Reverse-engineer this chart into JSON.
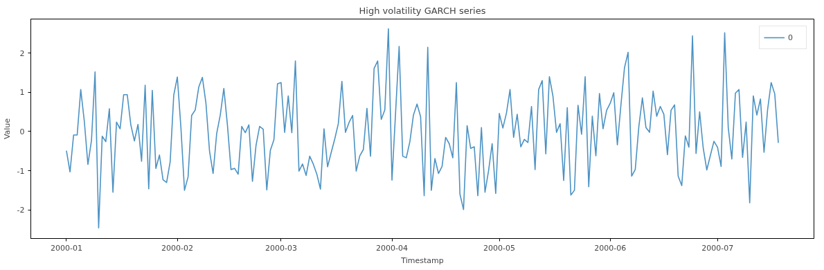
{
  "chart_data": {
    "type": "line",
    "title": "High volatility GARCH series",
    "xlabel": "Timestamp",
    "ylabel": "Value",
    "x": [
      "2000-01-01",
      "2000-01-02",
      "2000-01-03",
      "2000-01-04",
      "2000-01-05",
      "2000-01-06",
      "2000-01-07",
      "2000-01-08",
      "2000-01-09",
      "2000-01-10",
      "2000-01-11",
      "2000-01-12",
      "2000-01-13",
      "2000-01-14",
      "2000-01-15",
      "2000-01-16",
      "2000-01-17",
      "2000-01-18",
      "2000-01-19",
      "2000-01-20",
      "2000-01-21",
      "2000-01-22",
      "2000-01-23",
      "2000-01-24",
      "2000-01-25",
      "2000-01-26",
      "2000-01-27",
      "2000-01-28",
      "2000-01-29",
      "2000-01-30",
      "2000-01-31",
      "2000-02-01",
      "2000-02-02",
      "2000-02-03",
      "2000-02-04",
      "2000-02-05",
      "2000-02-06",
      "2000-02-07",
      "2000-02-08",
      "2000-02-09",
      "2000-02-10",
      "2000-02-11",
      "2000-02-12",
      "2000-02-13",
      "2000-02-14",
      "2000-02-15",
      "2000-02-16",
      "2000-02-17",
      "2000-02-18",
      "2000-02-19",
      "2000-02-20",
      "2000-02-21",
      "2000-02-22",
      "2000-02-23",
      "2000-02-24",
      "2000-02-25",
      "2000-02-26",
      "2000-02-27",
      "2000-02-28",
      "2000-02-29",
      "2000-03-01",
      "2000-03-02",
      "2000-03-03",
      "2000-03-04",
      "2000-03-05",
      "2000-03-06",
      "2000-03-07",
      "2000-03-08",
      "2000-03-09",
      "2000-03-10",
      "2000-03-11",
      "2000-03-12",
      "2000-03-13",
      "2000-03-14",
      "2000-03-15",
      "2000-03-16",
      "2000-03-17",
      "2000-03-18",
      "2000-03-19",
      "2000-03-20",
      "2000-03-21",
      "2000-03-22",
      "2000-03-23",
      "2000-03-24",
      "2000-03-25",
      "2000-03-26",
      "2000-03-27",
      "2000-03-28",
      "2000-03-29",
      "2000-03-30",
      "2000-03-31",
      "2000-04-01",
      "2000-04-02",
      "2000-04-03",
      "2000-04-04",
      "2000-04-05",
      "2000-04-06",
      "2000-04-07",
      "2000-04-08",
      "2000-04-09",
      "2000-04-10",
      "2000-04-11",
      "2000-04-12",
      "2000-04-13",
      "2000-04-14",
      "2000-04-15",
      "2000-04-16",
      "2000-04-17",
      "2000-04-18",
      "2000-04-19",
      "2000-04-20",
      "2000-04-21",
      "2000-04-22",
      "2000-04-23",
      "2000-04-24",
      "2000-04-25",
      "2000-04-26",
      "2000-04-27",
      "2000-04-28",
      "2000-04-29",
      "2000-04-30",
      "2000-05-01",
      "2000-05-02",
      "2000-05-03",
      "2000-05-04",
      "2000-05-05",
      "2000-05-06",
      "2000-05-07",
      "2000-05-08",
      "2000-05-09",
      "2000-05-10",
      "2000-05-11",
      "2000-05-12",
      "2000-05-13",
      "2000-05-14",
      "2000-05-15",
      "2000-05-16",
      "2000-05-17",
      "2000-05-18",
      "2000-05-19",
      "2000-05-20",
      "2000-05-21",
      "2000-05-22",
      "2000-05-23",
      "2000-05-24",
      "2000-05-25",
      "2000-05-26",
      "2000-05-27",
      "2000-05-28",
      "2000-05-29",
      "2000-05-30",
      "2000-05-31",
      "2000-06-01",
      "2000-06-02",
      "2000-06-03",
      "2000-06-04",
      "2000-06-05",
      "2000-06-06",
      "2000-06-07",
      "2000-06-08",
      "2000-06-09",
      "2000-06-10",
      "2000-06-11",
      "2000-06-12",
      "2000-06-13",
      "2000-06-14",
      "2000-06-15",
      "2000-06-16",
      "2000-06-17",
      "2000-06-18",
      "2000-06-19",
      "2000-06-20",
      "2000-06-21",
      "2000-06-22",
      "2000-06-23",
      "2000-06-24",
      "2000-06-25",
      "2000-06-26",
      "2000-06-27",
      "2000-06-28",
      "2000-06-29",
      "2000-06-30",
      "2000-07-01",
      "2000-07-02",
      "2000-07-03",
      "2000-07-04",
      "2000-07-05",
      "2000-07-06",
      "2000-07-07",
      "2000-07-08",
      "2000-07-09",
      "2000-07-10",
      "2000-07-11",
      "2000-07-12",
      "2000-07-13",
      "2000-07-14",
      "2000-07-15",
      "2000-07-16",
      "2000-07-17",
      "2000-07-18"
    ],
    "series": [
      {
        "name": "0",
        "color": "#4c92c3",
        "values": [
          -0.49,
          -1.03,
          -0.09,
          -0.09,
          1.07,
          0.26,
          -0.84,
          -0.23,
          1.52,
          -2.46,
          -0.12,
          -0.26,
          0.58,
          -1.55,
          0.24,
          0.07,
          0.94,
          0.94,
          0.17,
          -0.24,
          0.18,
          -0.76,
          1.18,
          -1.46,
          1.05,
          -0.94,
          -0.6,
          -1.23,
          -1.3,
          -0.77,
          0.93,
          1.39,
          0.1,
          -1.5,
          -1.16,
          0.41,
          0.55,
          1.14,
          1.38,
          0.72,
          -0.5,
          -1.07,
          -0.05,
          0.42,
          1.1,
          0.17,
          -0.97,
          -0.94,
          -1.09,
          0.13,
          -0.03,
          0.17,
          -1.27,
          -0.35,
          0.13,
          0.06,
          -1.49,
          -0.48,
          -0.21,
          1.22,
          1.25,
          -0.02,
          0.91,
          -0.03,
          1.8,
          -1.01,
          -0.83,
          -1.12,
          -0.63,
          -0.83,
          -1.09,
          -1.47,
          0.07,
          -0.9,
          -0.54,
          -0.19,
          0.2,
          1.28,
          -0.02,
          0.23,
          0.41,
          -1.01,
          -0.62,
          -0.46,
          0.59,
          -0.63,
          1.61,
          1.8,
          0.31,
          0.55,
          2.62,
          -1.24,
          0.47,
          2.17,
          -0.63,
          -0.67,
          -0.26,
          0.42,
          0.7,
          0.38,
          -1.64,
          2.15,
          -1.5,
          -0.69,
          -1.07,
          -0.89,
          -0.15,
          -0.31,
          -0.67,
          1.25,
          -1.6,
          -1.99,
          0.15,
          -0.43,
          -0.39,
          -1.64,
          0.1,
          -1.55,
          -1.0,
          -0.31,
          -1.58,
          0.46,
          0.09,
          0.47,
          1.07,
          -0.15,
          0.44,
          -0.39,
          -0.2,
          -0.28,
          0.64,
          -0.97,
          1.07,
          1.3,
          -0.57,
          1.4,
          0.9,
          -0.02,
          0.2,
          -1.25,
          0.61,
          -1.62,
          -1.5,
          0.67,
          -0.07,
          1.4,
          -1.41,
          0.39,
          -0.62,
          0.97,
          0.07,
          0.54,
          0.72,
          0.99,
          -0.34,
          0.68,
          1.63,
          2.02,
          -1.14,
          -0.97,
          0.12,
          0.86,
          0.1,
          -0.02,
          1.03,
          0.39,
          0.64,
          0.44,
          -0.59,
          0.54,
          0.68,
          -1.14,
          -1.38,
          -0.11,
          -0.4,
          2.44,
          -0.56,
          0.5,
          -0.42,
          -0.98,
          -0.61,
          -0.25,
          -0.4,
          -0.89,
          2.52,
          0.1,
          -0.7,
          0.98,
          1.07,
          -0.66,
          0.24,
          -1.82,
          0.91,
          0.42,
          0.83,
          -0.53,
          0.56,
          1.25,
          0.96,
          -0.29
        ]
      }
    ],
    "xlim": [
      "1999-12-22T01:00",
      "2000-07-27T23:00"
    ],
    "ylim": [
      -2.73,
      2.87
    ],
    "xticks": [
      "2000-01",
      "2000-02",
      "2000-03",
      "2000-04",
      "2000-05",
      "2000-06",
      "2000-07"
    ],
    "yticks": [
      -2,
      -1,
      0,
      1,
      2
    ],
    "grid": false,
    "legend": "top right",
    "line_style": "solid",
    "marker": "none"
  }
}
